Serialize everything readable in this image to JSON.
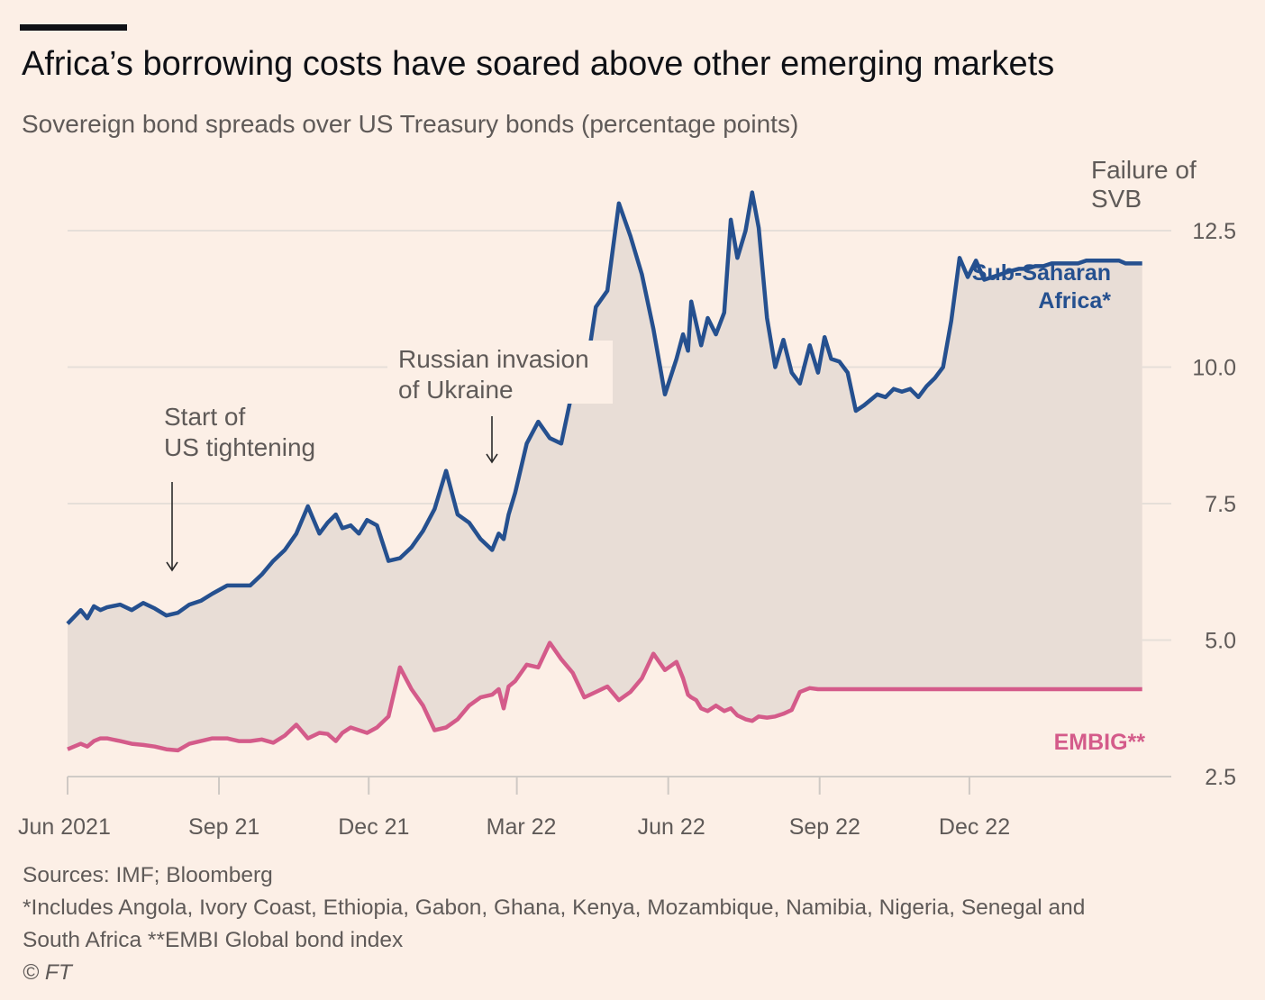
{
  "header": {
    "title": "Africa’s borrowing costs have soared above other emerging markets",
    "subtitle": "Sovereign bond spreads over US Treasury bonds (percentage points)"
  },
  "footer": {
    "sources": "Sources: IMF; Bloomberg",
    "note1": "*Includes Angola, Ivory Coast, Ethiopia, Gabon, Ghana, Kenya, Mozambique, Namibia, Nigeria, Senegal and",
    "note2": "South Africa   **EMBI Global bond index",
    "copyright": "© FT"
  },
  "chart_data": {
    "type": "area",
    "title": "Africa’s borrowing costs have soared above other emerging markets",
    "subtitle": "Sovereign bond spreads over US Treasury bonds (percentage points)",
    "ylim": [
      2.5,
      12.5
    ],
    "yticks": [
      2.5,
      5.0,
      7.5,
      10.0,
      12.5
    ],
    "ytick_labels": [
      "2.5",
      "5.0",
      "7.5",
      "10.0",
      "12.5"
    ],
    "xlim": [
      "2021-06-01",
      "2023-03-20"
    ],
    "xticks": [
      "2021-06-01",
      "2021-09-01",
      "2021-12-01",
      "2022-03-01",
      "2022-06-01",
      "2022-09-01",
      "2022-12-01"
    ],
    "xtick_labels": [
      "Jun 2021",
      "Sep 21",
      "Dec 21",
      "Mar 22",
      "Jun 22",
      "Sep 22",
      "Dec 22"
    ],
    "grid": true,
    "yaxis_position": "right",
    "series": [
      {
        "name": "Sub-Saharan Africa*",
        "color": "#25508f",
        "x": [
          "2021-06-01",
          "2021-06-09",
          "2021-06-13",
          "2021-06-17",
          "2021-06-21",
          "2021-06-25",
          "2021-07-03",
          "2021-07-10",
          "2021-07-17",
          "2021-07-24",
          "2021-07-31",
          "2021-08-07",
          "2021-08-14",
          "2021-08-21",
          "2021-08-28",
          "2021-09-06",
          "2021-09-13",
          "2021-09-20",
          "2021-09-27",
          "2021-10-04",
          "2021-10-11",
          "2021-10-18",
          "2021-10-25",
          "2021-11-01",
          "2021-11-06",
          "2021-11-11",
          "2021-11-15",
          "2021-11-20",
          "2021-11-25",
          "2021-11-30",
          "2021-12-06",
          "2021-12-13",
          "2021-12-20",
          "2021-12-27",
          "2022-01-03",
          "2022-01-10",
          "2022-01-17",
          "2022-01-24",
          "2022-01-31",
          "2022-02-07",
          "2022-02-14",
          "2022-02-18",
          "2022-02-21",
          "2022-02-24",
          "2022-02-28",
          "2022-03-07",
          "2022-03-14",
          "2022-03-21",
          "2022-03-28",
          "2022-04-04",
          "2022-04-11",
          "2022-04-18",
          "2022-04-25",
          "2022-05-02",
          "2022-05-09",
          "2022-05-16",
          "2022-05-23",
          "2022-05-30",
          "2022-06-06",
          "2022-06-10",
          "2022-06-13",
          "2022-06-15",
          "2022-06-18",
          "2022-06-21",
          "2022-06-25",
          "2022-06-30",
          "2022-07-05",
          "2022-07-09",
          "2022-07-13",
          "2022-07-18",
          "2022-07-22",
          "2022-07-26",
          "2022-07-31",
          "2022-08-05",
          "2022-08-10",
          "2022-08-15",
          "2022-08-20",
          "2022-08-26",
          "2022-08-31",
          "2022-09-04",
          "2022-09-08",
          "2022-09-13",
          "2022-09-18",
          "2022-09-23",
          "2022-09-28",
          "2022-10-02",
          "2022-10-06",
          "2022-10-11",
          "2022-10-16",
          "2022-10-21",
          "2022-10-26",
          "2022-10-31",
          "2022-11-05",
          "2022-11-10",
          "2022-11-15",
          "2022-11-20",
          "2022-11-25",
          "2022-11-30",
          "2022-12-05",
          "2022-12-10",
          "2022-12-15",
          "2022-12-20",
          "2022-12-25",
          "2022-12-31",
          "2023-01-05",
          "2023-01-10",
          "2023-01-15",
          "2023-01-20",
          "2023-01-25",
          "2023-01-31",
          "2023-02-05",
          "2023-02-10",
          "2023-02-15",
          "2023-02-20",
          "2023-02-25",
          "2023-03-02",
          "2023-03-06",
          "2023-03-08",
          "2023-03-13",
          "2023-03-16"
        ],
        "values": [
          5.3,
          5.55,
          5.4,
          5.62,
          5.55,
          5.6,
          5.65,
          5.55,
          5.68,
          5.58,
          5.45,
          5.5,
          5.65,
          5.72,
          5.85,
          6.0,
          6.0,
          6.0,
          6.2,
          6.45,
          6.65,
          6.95,
          7.45,
          6.95,
          7.15,
          7.3,
          7.05,
          7.1,
          6.95,
          7.2,
          7.1,
          6.45,
          6.5,
          6.7,
          7.0,
          7.4,
          8.1,
          7.3,
          7.15,
          6.85,
          6.65,
          6.95,
          6.85,
          7.3,
          7.7,
          8.6,
          9.0,
          8.7,
          8.6,
          9.6,
          9.7,
          11.1,
          11.4,
          13.0,
          12.4,
          11.7,
          10.7,
          9.5,
          10.15,
          10.6,
          10.3,
          11.2,
          10.8,
          10.4,
          10.9,
          10.6,
          11.0,
          12.7,
          12.0,
          12.5,
          13.2,
          12.55,
          10.9,
          10.0,
          10.5,
          9.9,
          9.7,
          10.4,
          9.9,
          10.55,
          10.15,
          10.1,
          9.9,
          9.2,
          9.3,
          9.4,
          9.5,
          9.45,
          9.6,
          9.55,
          9.6,
          9.45,
          9.65,
          9.8,
          10.0,
          10.85,
          12.0,
          11.65,
          11.95,
          11.6,
          11.65,
          11.7,
          11.75,
          11.8,
          11.8,
          11.85,
          11.85,
          11.9,
          11.9,
          11.9,
          11.9,
          11.95,
          11.95,
          11.95,
          11.95,
          11.95,
          11.9,
          11.9,
          11.9,
          11.9
        ],
        "label": "Sub-Saharan\nAfrica*"
      },
      {
        "name": "EMBIG**",
        "color": "#d45b8a",
        "values": [
          3.0,
          3.1,
          3.05,
          3.15,
          3.2,
          3.2,
          3.15,
          3.1,
          3.08,
          3.05,
          3.0,
          2.98,
          3.1,
          3.15,
          3.2,
          3.2,
          3.15,
          3.15,
          3.18,
          3.12,
          3.25,
          3.45,
          3.2,
          3.3,
          3.28,
          3.15,
          3.3,
          3.4,
          3.35,
          3.3,
          3.4,
          3.6,
          4.5,
          4.1,
          3.8,
          3.35,
          3.4,
          3.55,
          3.8,
          3.95,
          4.0,
          4.1,
          3.75,
          4.15,
          4.25,
          4.55,
          4.5,
          4.95,
          4.65,
          4.4,
          3.95,
          4.05,
          4.15,
          3.9,
          4.05,
          4.3,
          4.75,
          4.45,
          4.6,
          4.3,
          4.0,
          3.95,
          3.9,
          3.75,
          3.7,
          3.8,
          3.7,
          3.75,
          3.62,
          3.55,
          3.52,
          3.6,
          3.58,
          3.6,
          3.65,
          3.72,
          4.05,
          4.12,
          4.1,
          4.1,
          4.1,
          4.1,
          4.1,
          4.1,
          4.1,
          4.1,
          4.1,
          4.1,
          4.1,
          4.1,
          4.1,
          4.1,
          4.1,
          4.1,
          4.1,
          4.1,
          4.1,
          4.1,
          4.1,
          4.1,
          4.1,
          4.1,
          4.1,
          4.1,
          4.1,
          4.1,
          4.1,
          4.1,
          4.1,
          4.1,
          4.1,
          4.1,
          4.1,
          4.1,
          4.1,
          4.1,
          4.1,
          4.1,
          4.1,
          4.1
        ],
        "label": "EMBIG**"
      }
    ],
    "annotations": [
      {
        "text": "Start of\nUS tightening",
        "x": "2021-10-15"
      },
      {
        "text": "Russian invasion\nof Ukraine",
        "x": "2022-02-24"
      },
      {
        "text": "Failure of\nSVB",
        "x": "2023-03-10"
      }
    ]
  }
}
